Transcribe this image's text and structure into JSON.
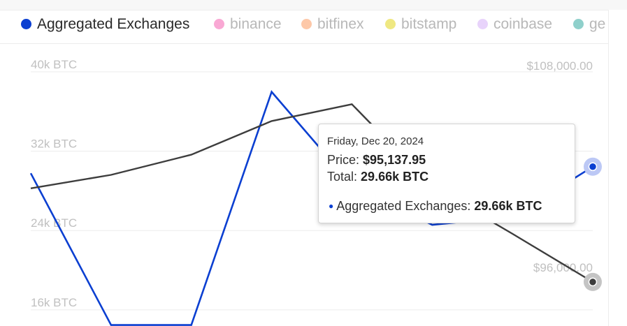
{
  "legend": [
    {
      "label": "Aggregated Exchanges",
      "color": "#0b3fd1",
      "active": true
    },
    {
      "label": "binance",
      "color": "#f9a8d4",
      "active": false
    },
    {
      "label": "bitfinex",
      "color": "#fdc8a8",
      "active": false
    },
    {
      "label": "bitstamp",
      "color": "#efe882",
      "active": false
    },
    {
      "label": "coinbase",
      "color": "#e8d3fb",
      "active": false
    },
    {
      "label": "ge",
      "color": "#8fd0cb",
      "active": false
    }
  ],
  "tooltip": {
    "date": "Friday, Dec 20, 2024",
    "price_label": "Price:",
    "price_value": "$95,137.95",
    "total_label": "Total:",
    "total_value": "29.66k BTC",
    "series_label": "Aggregated Exchanges:",
    "series_value": "29.66k BTC"
  },
  "chart_data": {
    "type": "line",
    "left_axis": {
      "ticks": [
        "40k BTC",
        "32k BTC",
        "24k BTC",
        "16k BTC"
      ],
      "tick_values": [
        40000,
        32000,
        24000,
        16000
      ],
      "range": [
        13600,
        40200
      ]
    },
    "right_axis": {
      "ticks": [
        "$108,000.00",
        "$96,000.00"
      ],
      "tick_values": [
        108000,
        96000
      ],
      "range": [
        92520,
        108200
      ]
    },
    "x": [
      0,
      1,
      2,
      3,
      4,
      5,
      6,
      7
    ],
    "series": [
      {
        "name": "Aggregated Exchanges",
        "axis": "left",
        "color": "#0b3fd1",
        "values": [
          29000,
          13700,
          13700,
          37200,
          27800,
          23800,
          24600,
          29660
        ]
      },
      {
        "axis": "right",
        "color": "#3d3d3d",
        "values": [
          100700,
          101500,
          102700,
          104700,
          105700,
          100800,
          98000,
          95137.95
        ]
      }
    ],
    "grid": true
  }
}
